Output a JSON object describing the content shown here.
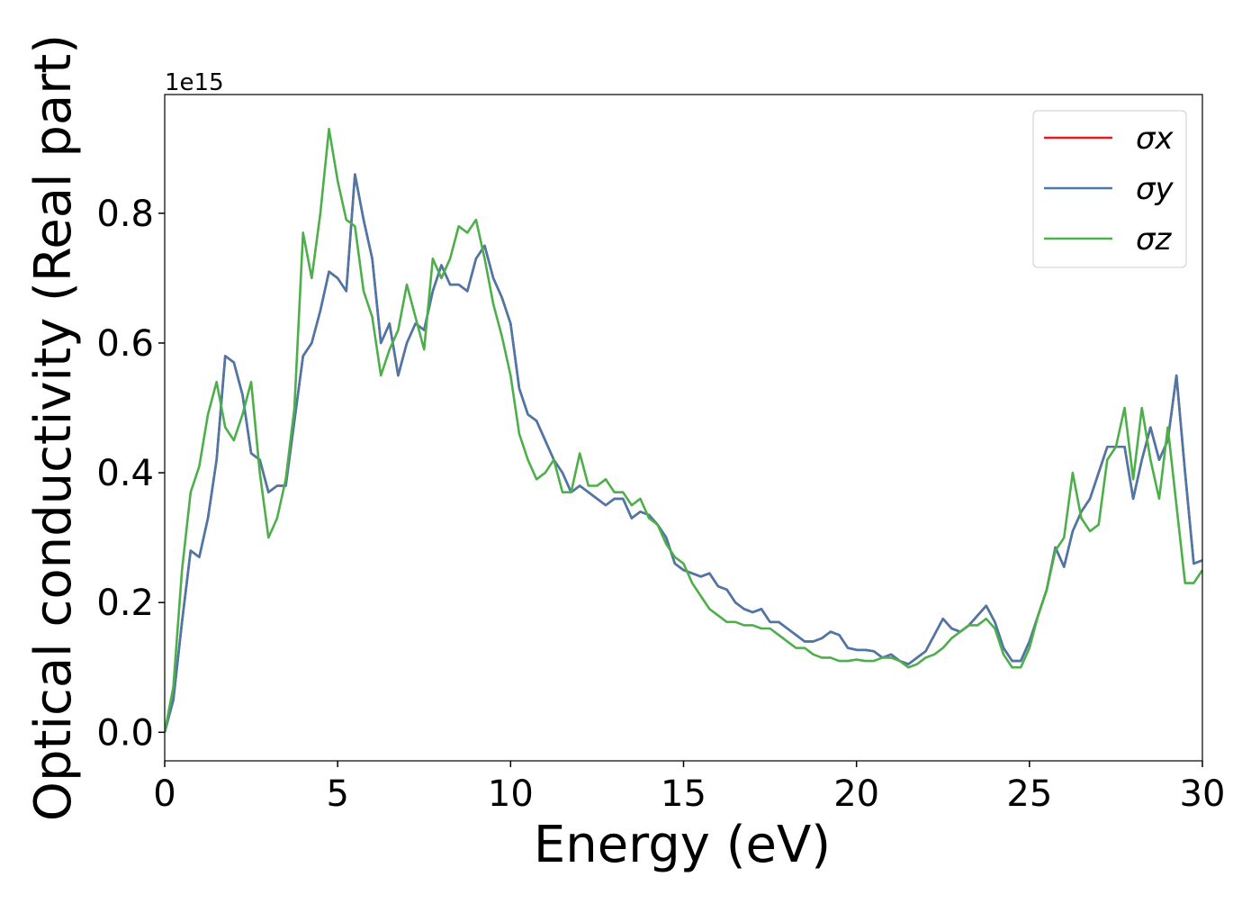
{
  "chart_data": {
    "type": "line",
    "xlabel": "Energy (eV)",
    "ylabel": "Optical conductivity (Real part)",
    "y_offset_label": "1e15",
    "x": [
      0,
      0.25,
      0.5,
      0.75,
      1,
      1.25,
      1.5,
      1.75,
      2,
      2.25,
      2.5,
      2.75,
      3,
      3.25,
      3.5,
      3.75,
      4,
      4.25,
      4.5,
      4.75,
      5,
      5.25,
      5.5,
      5.75,
      6,
      6.25,
      6.5,
      6.75,
      7,
      7.25,
      7.5,
      7.75,
      8,
      8.25,
      8.5,
      8.75,
      9,
      9.25,
      9.5,
      9.75,
      10,
      10.25,
      10.5,
      10.75,
      11,
      11.25,
      11.5,
      11.75,
      12,
      12.25,
      12.5,
      12.75,
      13,
      13.25,
      13.5,
      13.75,
      14,
      14.25,
      14.5,
      14.75,
      15,
      15.25,
      15.5,
      15.75,
      16,
      16.25,
      16.5,
      16.75,
      17,
      17.25,
      17.5,
      17.75,
      18,
      18.25,
      18.5,
      18.75,
      19,
      19.25,
      19.5,
      19.75,
      20,
      20.25,
      20.5,
      20.75,
      21,
      21.25,
      21.5,
      21.75,
      22,
      22.25,
      22.5,
      22.75,
      23,
      23.25,
      23.5,
      23.75,
      24,
      24.25,
      24.5,
      24.75,
      25,
      25.25,
      25.5,
      25.75,
      26,
      26.25,
      26.5,
      26.75,
      27,
      27.25,
      27.5,
      27.75,
      28,
      28.25,
      28.5,
      28.75,
      29,
      29.25,
      29.5,
      29.75,
      30
    ],
    "series": [
      {
        "name": "σx",
        "color": "#e41a1c",
        "values": [
          0,
          0.05,
          0.17,
          0.28,
          0.27,
          0.33,
          0.42,
          0.58,
          0.57,
          0.52,
          0.43,
          0.42,
          0.37,
          0.38,
          0.38,
          0.48,
          0.58,
          0.6,
          0.65,
          0.71,
          0.7,
          0.68,
          0.86,
          0.79,
          0.73,
          0.6,
          0.63,
          0.55,
          0.6,
          0.63,
          0.62,
          0.68,
          0.72,
          0.69,
          0.69,
          0.68,
          0.73,
          0.75,
          0.7,
          0.67,
          0.63,
          0.53,
          0.49,
          0.48,
          0.45,
          0.42,
          0.4,
          0.37,
          0.38,
          0.37,
          0.36,
          0.35,
          0.36,
          0.36,
          0.33,
          0.34,
          0.335,
          0.32,
          0.3,
          0.26,
          0.25,
          0.245,
          0.24,
          0.245,
          0.225,
          0.22,
          0.2,
          0.19,
          0.185,
          0.19,
          0.17,
          0.17,
          0.16,
          0.15,
          0.14,
          0.14,
          0.145,
          0.155,
          0.15,
          0.13,
          0.127,
          0.127,
          0.125,
          0.115,
          0.12,
          0.11,
          0.105,
          0.115,
          0.125,
          0.15,
          0.175,
          0.16,
          0.155,
          0.165,
          0.18,
          0.195,
          0.17,
          0.13,
          0.11,
          0.11,
          0.14,
          0.18,
          0.22,
          0.285,
          0.255,
          0.31,
          0.34,
          0.36,
          0.4,
          0.44,
          0.44,
          0.44,
          0.36,
          0.42,
          0.47,
          0.42,
          0.45,
          0.55,
          0.4,
          0.26,
          0.265
        ]
      },
      {
        "name": "σy",
        "color": "#4a78a8",
        "values": [
          0,
          0.05,
          0.17,
          0.28,
          0.27,
          0.33,
          0.42,
          0.58,
          0.57,
          0.52,
          0.43,
          0.42,
          0.37,
          0.38,
          0.38,
          0.48,
          0.58,
          0.6,
          0.65,
          0.71,
          0.7,
          0.68,
          0.86,
          0.79,
          0.73,
          0.6,
          0.63,
          0.55,
          0.6,
          0.63,
          0.62,
          0.68,
          0.72,
          0.69,
          0.69,
          0.68,
          0.73,
          0.75,
          0.7,
          0.67,
          0.63,
          0.53,
          0.49,
          0.48,
          0.45,
          0.42,
          0.4,
          0.37,
          0.38,
          0.37,
          0.36,
          0.35,
          0.36,
          0.36,
          0.33,
          0.34,
          0.335,
          0.32,
          0.3,
          0.26,
          0.25,
          0.245,
          0.24,
          0.245,
          0.225,
          0.22,
          0.2,
          0.19,
          0.185,
          0.19,
          0.17,
          0.17,
          0.16,
          0.15,
          0.14,
          0.14,
          0.145,
          0.155,
          0.15,
          0.13,
          0.127,
          0.127,
          0.125,
          0.115,
          0.12,
          0.11,
          0.105,
          0.115,
          0.125,
          0.15,
          0.175,
          0.16,
          0.155,
          0.165,
          0.18,
          0.195,
          0.17,
          0.13,
          0.11,
          0.11,
          0.14,
          0.18,
          0.22,
          0.285,
          0.255,
          0.31,
          0.34,
          0.36,
          0.4,
          0.44,
          0.44,
          0.44,
          0.36,
          0.42,
          0.47,
          0.42,
          0.45,
          0.55,
          0.4,
          0.26,
          0.265
        ]
      },
      {
        "name": "σz",
        "color": "#4daf4a",
        "values": [
          0,
          0.07,
          0.25,
          0.37,
          0.41,
          0.49,
          0.54,
          0.47,
          0.45,
          0.49,
          0.54,
          0.4,
          0.3,
          0.33,
          0.39,
          0.5,
          0.77,
          0.7,
          0.8,
          0.93,
          0.85,
          0.79,
          0.78,
          0.68,
          0.64,
          0.55,
          0.59,
          0.62,
          0.69,
          0.64,
          0.59,
          0.73,
          0.7,
          0.73,
          0.78,
          0.77,
          0.79,
          0.73,
          0.66,
          0.61,
          0.55,
          0.46,
          0.42,
          0.39,
          0.4,
          0.42,
          0.37,
          0.37,
          0.43,
          0.38,
          0.38,
          0.39,
          0.37,
          0.37,
          0.35,
          0.36,
          0.33,
          0.32,
          0.29,
          0.27,
          0.26,
          0.23,
          0.21,
          0.19,
          0.18,
          0.17,
          0.17,
          0.165,
          0.165,
          0.16,
          0.16,
          0.15,
          0.14,
          0.13,
          0.13,
          0.12,
          0.115,
          0.115,
          0.11,
          0.11,
          0.112,
          0.11,
          0.11,
          0.115,
          0.115,
          0.11,
          0.1,
          0.105,
          0.115,
          0.12,
          0.13,
          0.145,
          0.155,
          0.165,
          0.165,
          0.175,
          0.16,
          0.12,
          0.1,
          0.1,
          0.13,
          0.18,
          0.22,
          0.28,
          0.3,
          0.4,
          0.33,
          0.31,
          0.32,
          0.42,
          0.44,
          0.5,
          0.39,
          0.5,
          0.42,
          0.36,
          0.47,
          0.35,
          0.23,
          0.23,
          0.25
        ]
      }
    ],
    "xlim": [
      0,
      30
    ],
    "xticks": [
      0,
      5,
      10,
      15,
      20,
      25,
      30
    ],
    "ylim": [
      -0.044,
      0.983
    ],
    "yticks": [
      {
        "value": 0,
        "label": "0.0"
      },
      0.2,
      0.4,
      0.6,
      0.8
    ],
    "grid": false,
    "legend": "upper right"
  }
}
